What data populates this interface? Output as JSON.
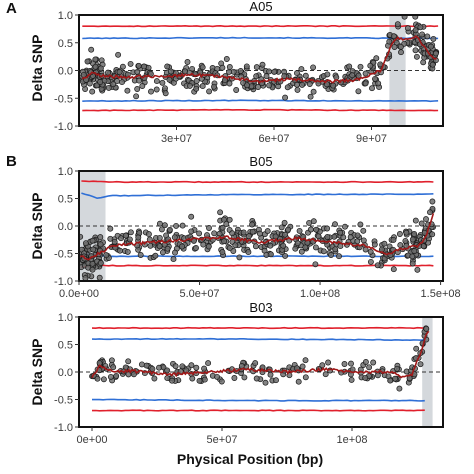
{
  "figure": {
    "ylabel": "Delta SNP",
    "xlabel": "Physical Position (bp)"
  },
  "colors": {
    "threshold_99": "#e0202c",
    "threshold_95": "#2f6fd6",
    "smooth_line": "#a01818",
    "points_fill": "#6e6e6e",
    "points_stroke": "#1a1a1a",
    "highlight": "#d4d8dc",
    "zero_line": "#333333"
  },
  "chart_data": [
    {
      "type": "scatter",
      "panel_letter": "A",
      "title": "A05",
      "ylabel": "Delta SNP",
      "xlabel": "",
      "ylim": [
        -1.0,
        1.0
      ],
      "yticks": [
        1.0,
        0.5,
        0.0,
        -0.5,
        -1.0
      ],
      "ytick_labels": [
        "1.0",
        "0.5",
        "0.0",
        "-0.5",
        "-1.0"
      ],
      "xlim": [
        0,
        112000000
      ],
      "xticks": [
        30000000,
        60000000,
        90000000
      ],
      "xtick_labels": [
        "3e+07",
        "6e+07",
        "9e+07"
      ],
      "highlight_regions": [
        [
          95500000,
          100500000
        ]
      ],
      "zero_line": true,
      "grid": false,
      "thresholds": {
        "ci99_upper": [
          [
            1000000,
            0.8
          ],
          [
            50000000,
            0.8
          ],
          [
            100000000,
            0.8
          ],
          [
            110500000,
            0.8
          ]
        ],
        "ci95_upper": [
          [
            1000000,
            0.58
          ],
          [
            50000000,
            0.59
          ],
          [
            110500000,
            0.58
          ]
        ],
        "ci95_lower": [
          [
            1000000,
            -0.55
          ],
          [
            50000000,
            -0.54
          ],
          [
            110500000,
            -0.55
          ]
        ],
        "ci99_lower": [
          [
            1000000,
            -0.72
          ],
          [
            50000000,
            -0.71
          ],
          [
            110500000,
            -0.72
          ]
        ]
      },
      "smooth": [
        [
          1000000,
          -0.15
        ],
        [
          4000000,
          -0.05
        ],
        [
          8000000,
          -0.1
        ],
        [
          15000000,
          -0.12
        ],
        [
          25000000,
          -0.1
        ],
        [
          35000000,
          -0.08
        ],
        [
          45000000,
          -0.12
        ],
        [
          55000000,
          -0.2
        ],
        [
          65000000,
          -0.15
        ],
        [
          75000000,
          -0.2
        ],
        [
          85000000,
          -0.18
        ],
        [
          93000000,
          0.0
        ],
        [
          96000000,
          0.45
        ],
        [
          98000000,
          0.6
        ],
        [
          100000000,
          0.55
        ],
        [
          104000000,
          0.6
        ],
        [
          108000000,
          0.3
        ],
        [
          110000000,
          0.2
        ]
      ],
      "point_sigma": 0.14,
      "point_count": 430
    },
    {
      "type": "scatter",
      "panel_letter": "B",
      "title": "B05",
      "ylabel": "Delta SNP",
      "xlabel": "",
      "ylim": [
        -1.0,
        1.0
      ],
      "yticks": [
        1.0,
        0.5,
        0.0,
        -0.5,
        -1.0
      ],
      "ytick_labels": [
        "1.0",
        "0.5",
        "0.0",
        "-0.5",
        "-1.0"
      ],
      "xlim": [
        0,
        151000000
      ],
      "xticks": [
        0,
        50000000,
        100000000,
        150000000
      ],
      "xtick_labels": [
        "0.0e+00",
        "5.0e+07",
        "1.0e+08",
        "1.5e+08"
      ],
      "highlight_regions": [
        [
          200000,
          11000000
        ]
      ],
      "zero_line": true,
      "grid": false,
      "thresholds": {
        "ci99_upper": [
          [
            1000000,
            0.82
          ],
          [
            12000000,
            0.8
          ],
          [
            60000000,
            0.8
          ],
          [
            120000000,
            0.8
          ],
          [
            147000000,
            0.8
          ]
        ],
        "ci95_upper": [
          [
            1000000,
            0.6
          ],
          [
            8000000,
            0.5
          ],
          [
            12000000,
            0.55
          ],
          [
            60000000,
            0.57
          ],
          [
            147000000,
            0.58
          ]
        ],
        "ci95_lower": [
          [
            1000000,
            -0.5
          ],
          [
            12000000,
            -0.55
          ],
          [
            147000000,
            -0.55
          ]
        ],
        "ci99_lower": [
          [
            1000000,
            -0.75
          ],
          [
            8000000,
            -0.7
          ],
          [
            12000000,
            -0.72
          ],
          [
            147000000,
            -0.72
          ]
        ]
      },
      "smooth": [
        [
          500000,
          -0.55
        ],
        [
          4000000,
          -0.6
        ],
        [
          8000000,
          -0.5
        ],
        [
          15000000,
          -0.35
        ],
        [
          30000000,
          -0.3
        ],
        [
          45000000,
          -0.25
        ],
        [
          60000000,
          -0.2
        ],
        [
          75000000,
          -0.3
        ],
        [
          90000000,
          -0.22
        ],
        [
          105000000,
          -0.3
        ],
        [
          118000000,
          -0.35
        ],
        [
          128000000,
          -0.5
        ],
        [
          135000000,
          -0.4
        ],
        [
          141000000,
          -0.35
        ],
        [
          144000000,
          -0.2
        ],
        [
          146000000,
          0.1
        ],
        [
          147000000,
          0.25
        ]
      ],
      "point_sigma": 0.17,
      "point_count": 480
    },
    {
      "type": "scatter",
      "panel_letter": "",
      "title": "B03",
      "ylabel": "Delta SNP",
      "xlabel": "Physical Position (bp)",
      "ylim": [
        -1.0,
        1.0
      ],
      "yticks": [
        1.0,
        0.5,
        0.0,
        -0.5,
        -1.0
      ],
      "ytick_labels": [
        "1.0",
        "0.5",
        "0.0",
        "-0.5",
        "-1.0"
      ],
      "xlim": [
        -5000000,
        135000000
      ],
      "xticks": [
        0,
        50000000,
        100000000
      ],
      "xtick_labels": [
        "0e+00",
        "5e+07",
        "1e+08"
      ],
      "highlight_regions": [
        [
          127000000,
          131000000
        ]
      ],
      "zero_line": true,
      "grid": false,
      "thresholds": {
        "ci99_upper": [
          [
            0,
            0.8
          ],
          [
            60000000,
            0.8
          ],
          [
            128000000,
            0.8
          ]
        ],
        "ci95_upper": [
          [
            0,
            0.6
          ],
          [
            60000000,
            0.6
          ],
          [
            128000000,
            0.58
          ]
        ],
        "ci95_lower": [
          [
            0,
            -0.5
          ],
          [
            60000000,
            -0.52
          ],
          [
            128000000,
            -0.52
          ]
        ],
        "ci99_lower": [
          [
            0,
            -0.7
          ],
          [
            60000000,
            -0.7
          ],
          [
            128000000,
            -0.7
          ]
        ]
      },
      "smooth": [
        [
          0,
          -0.1
        ],
        [
          3000000,
          0.1
        ],
        [
          8000000,
          0.0
        ],
        [
          15000000,
          0.02
        ],
        [
          30000000,
          -0.05
        ],
        [
          45000000,
          0.0
        ],
        [
          60000000,
          0.05
        ],
        [
          75000000,
          0.0
        ],
        [
          90000000,
          0.05
        ],
        [
          105000000,
          0.0
        ],
        [
          115000000,
          0.0
        ],
        [
          120000000,
          -0.1
        ],
        [
          123000000,
          -0.05
        ],
        [
          125000000,
          0.2
        ],
        [
          127000000,
          0.4
        ],
        [
          128500000,
          0.7
        ],
        [
          129500000,
          0.75
        ]
      ],
      "point_sigma": 0.1,
      "point_count": 190
    }
  ]
}
